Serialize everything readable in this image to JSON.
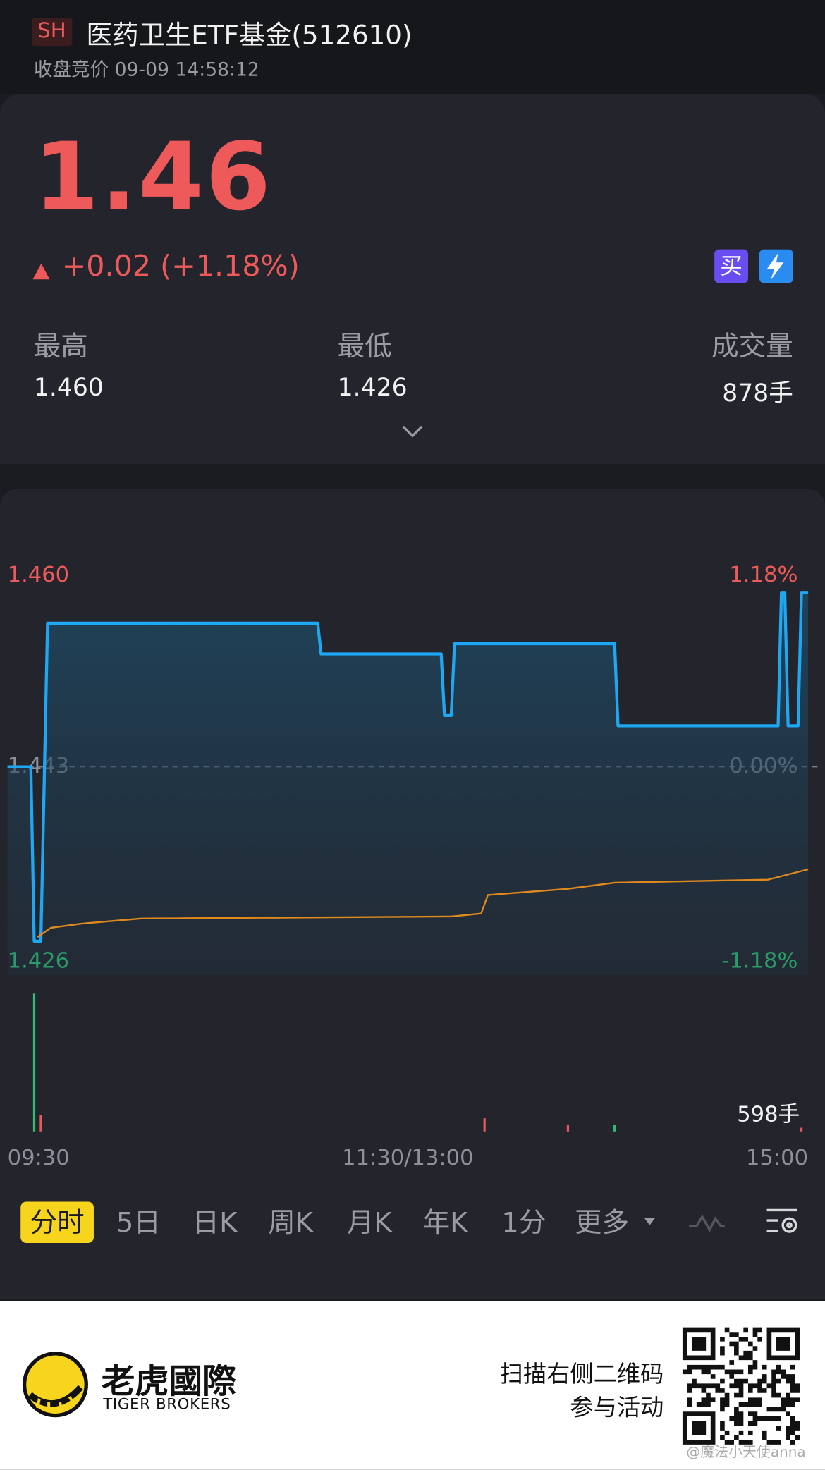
{
  "header": {
    "exchange": "SH",
    "title": "医药卫生ETF基金(512610)",
    "status": "收盘竞价 09-09 14:58:12"
  },
  "quote": {
    "price": "1.46",
    "change": "+0.02 (+1.18%)",
    "buy": "买"
  },
  "stats": [
    {
      "label": "最高",
      "value": "1.460"
    },
    {
      "label": "最低",
      "value": "1.426"
    },
    {
      "label": "成交量",
      "value": "878手"
    }
  ],
  "chart_data": [
    {
      "type": "line",
      "xlim": [
        0,
        240
      ],
      "xticks": [
        {
          "value": 0,
          "label": "09:30"
        },
        {
          "value": 120,
          "label": "11:30/13:00"
        },
        {
          "value": 240,
          "label": "15:00"
        }
      ],
      "ylim": [
        1.426,
        1.46
      ],
      "yticks": [
        {
          "value": 1.426,
          "label": "1.426"
        },
        {
          "value": 1.443,
          "label": "1.443"
        },
        {
          "value": 1.46,
          "label": "1.460"
        }
      ],
      "y2lim": [
        -1.18,
        1.18
      ],
      "y2ticks": [
        {
          "value": -1.18,
          "label": "-1.18%"
        },
        {
          "value": 0,
          "label": "0.00%"
        },
        {
          "value": 1.18,
          "label": "1.18%"
        }
      ],
      "series": [
        {
          "color": "#1ea7f2",
          "fill": true,
          "x": [
            0,
            7,
            8,
            10,
            12,
            93,
            94,
            130,
            131,
            133,
            134,
            182,
            183,
            231,
            232,
            233,
            234,
            237,
            238,
            240
          ],
          "values": [
            1.443,
            1.443,
            1.426,
            1.426,
            1.457,
            1.457,
            1.454,
            1.454,
            1.448,
            1.448,
            1.455,
            1.455,
            1.447,
            1.447,
            1.46,
            1.46,
            1.447,
            1.447,
            1.46,
            1.46
          ]
        },
        {
          "color": "#e08a1e",
          "fill": false,
          "x": [
            9,
            13,
            22,
            40,
            133,
            142,
            144,
            168,
            182,
            228,
            240
          ],
          "values": [
            1.4264,
            1.4273,
            1.4277,
            1.4282,
            1.4284,
            1.4287,
            1.4305,
            1.4311,
            1.4317,
            1.432,
            1.433
          ]
        }
      ]
    },
    {
      "type": "bar",
      "xlim": [
        0,
        240
      ],
      "x": [
        8,
        10,
        143,
        168,
        182,
        238
      ],
      "values": [
        598,
        70,
        57,
        30,
        30,
        16
      ],
      "colors": [
        "#2fbf71",
        "#e85a5a",
        "#e85a5a",
        "#e85a5a",
        "#2fbf71",
        "#e85a5a"
      ],
      "ylim": [
        0,
        598
      ],
      "yticks": [
        {
          "value": 598,
          "label": "598手"
        }
      ]
    }
  ],
  "tabs": [
    "分时",
    "5日",
    "日K",
    "周K",
    "月K",
    "年K",
    "1分",
    "更多"
  ],
  "footer": {
    "brand": "老虎國際",
    "brand_en": "TIGER BROKERS",
    "cta_line1": "扫描右侧二维码",
    "cta_line2": "参与活动",
    "watermark": "@魔法小天使anna"
  }
}
